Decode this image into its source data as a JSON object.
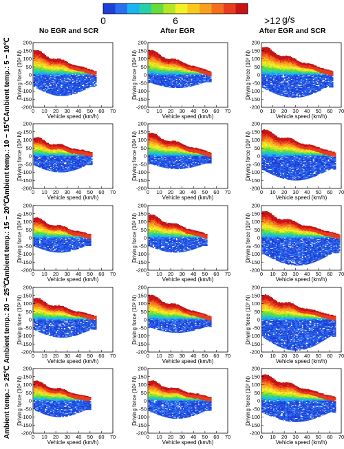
{
  "figure": {
    "colorbar": {
      "min_label": "0",
      "mid_label": "6",
      "max_label": ">12",
      "unit": "g/s",
      "colors": [
        "#1f3fd6",
        "#2a6ff0",
        "#1ab4f0",
        "#26d0a8",
        "#64dc3c",
        "#b4e628",
        "#f4f028",
        "#f8c81e",
        "#f8a01e",
        "#f46e1e",
        "#e83c1e",
        "#c81414"
      ]
    },
    "column_titles": [
      "No EGR and SCR",
      "After EGR",
      "After EGR and SCR"
    ],
    "row_labels": [
      "Ambient temp.: 5 − 10℃",
      "Ambient temp.: 10 − 15℃",
      "Ambient temp.: 15 − 20℃",
      "Ambient temp.: 20 − 25℃",
      "Ambient temp.: > 25℃"
    ],
    "x_axis_label": "Vehicle speed (km/h)",
    "y_axis_label": "Driving force (10² N)",
    "x_ticks": [
      "0",
      "10",
      "20",
      "30",
      "40",
      "50",
      "60",
      "70"
    ],
    "y_ticks": [
      "200",
      "150",
      "100",
      "50",
      "0",
      "-50",
      "-100",
      "-150",
      "-200"
    ]
  },
  "chart_data": {
    "type": "heatmap",
    "grid": "small multiples, 5 rows × 3 columns",
    "xlim": [
      0,
      70
    ],
    "ylim": [
      -200,
      200
    ],
    "color_scale": [
      0,
      12
    ],
    "panels": [
      {
        "row": 0,
        "col": 0,
        "speed_max": 55,
        "force_top": 150,
        "force_bottom": -130,
        "peak_emission": 12
      },
      {
        "row": 0,
        "col": 1,
        "speed_max": 55,
        "force_top": 150,
        "force_bottom": -80,
        "peak_emission": 12
      },
      {
        "row": 0,
        "col": 2,
        "speed_max": 62,
        "force_top": 170,
        "force_bottom": -140,
        "peak_emission": 12
      },
      {
        "row": 1,
        "col": 0,
        "speed_max": 52,
        "force_top": 110,
        "force_bottom": -100,
        "peak_emission": 12
      },
      {
        "row": 1,
        "col": 1,
        "speed_max": 55,
        "force_top": 140,
        "force_bottom": -80,
        "peak_emission": 12
      },
      {
        "row": 1,
        "col": 2,
        "speed_max": 65,
        "force_top": 160,
        "force_bottom": -150,
        "peak_emission": 12
      },
      {
        "row": 2,
        "col": 0,
        "speed_max": 50,
        "force_top": 120,
        "force_bottom": -90,
        "peak_emission": 12
      },
      {
        "row": 2,
        "col": 1,
        "speed_max": 52,
        "force_top": 140,
        "force_bottom": -90,
        "peak_emission": 12
      },
      {
        "row": 2,
        "col": 2,
        "speed_max": 68,
        "force_top": 160,
        "force_bottom": -170,
        "peak_emission": 12
      },
      {
        "row": 3,
        "col": 0,
        "speed_max": 55,
        "force_top": 130,
        "force_bottom": -110,
        "peak_emission": 12
      },
      {
        "row": 3,
        "col": 1,
        "speed_max": 55,
        "force_top": 150,
        "force_bottom": -80,
        "peak_emission": 12
      },
      {
        "row": 3,
        "col": 2,
        "speed_max": 65,
        "force_top": 150,
        "force_bottom": -190,
        "peak_emission": 12
      },
      {
        "row": 4,
        "col": 0,
        "speed_max": 50,
        "force_top": 120,
        "force_bottom": -100,
        "peak_emission": 12
      },
      {
        "row": 4,
        "col": 1,
        "speed_max": 55,
        "force_top": 120,
        "force_bottom": -110,
        "peak_emission": 12
      },
      {
        "row": 4,
        "col": 2,
        "speed_max": 65,
        "force_top": 160,
        "force_bottom": -130,
        "peak_emission": 12
      }
    ]
  }
}
